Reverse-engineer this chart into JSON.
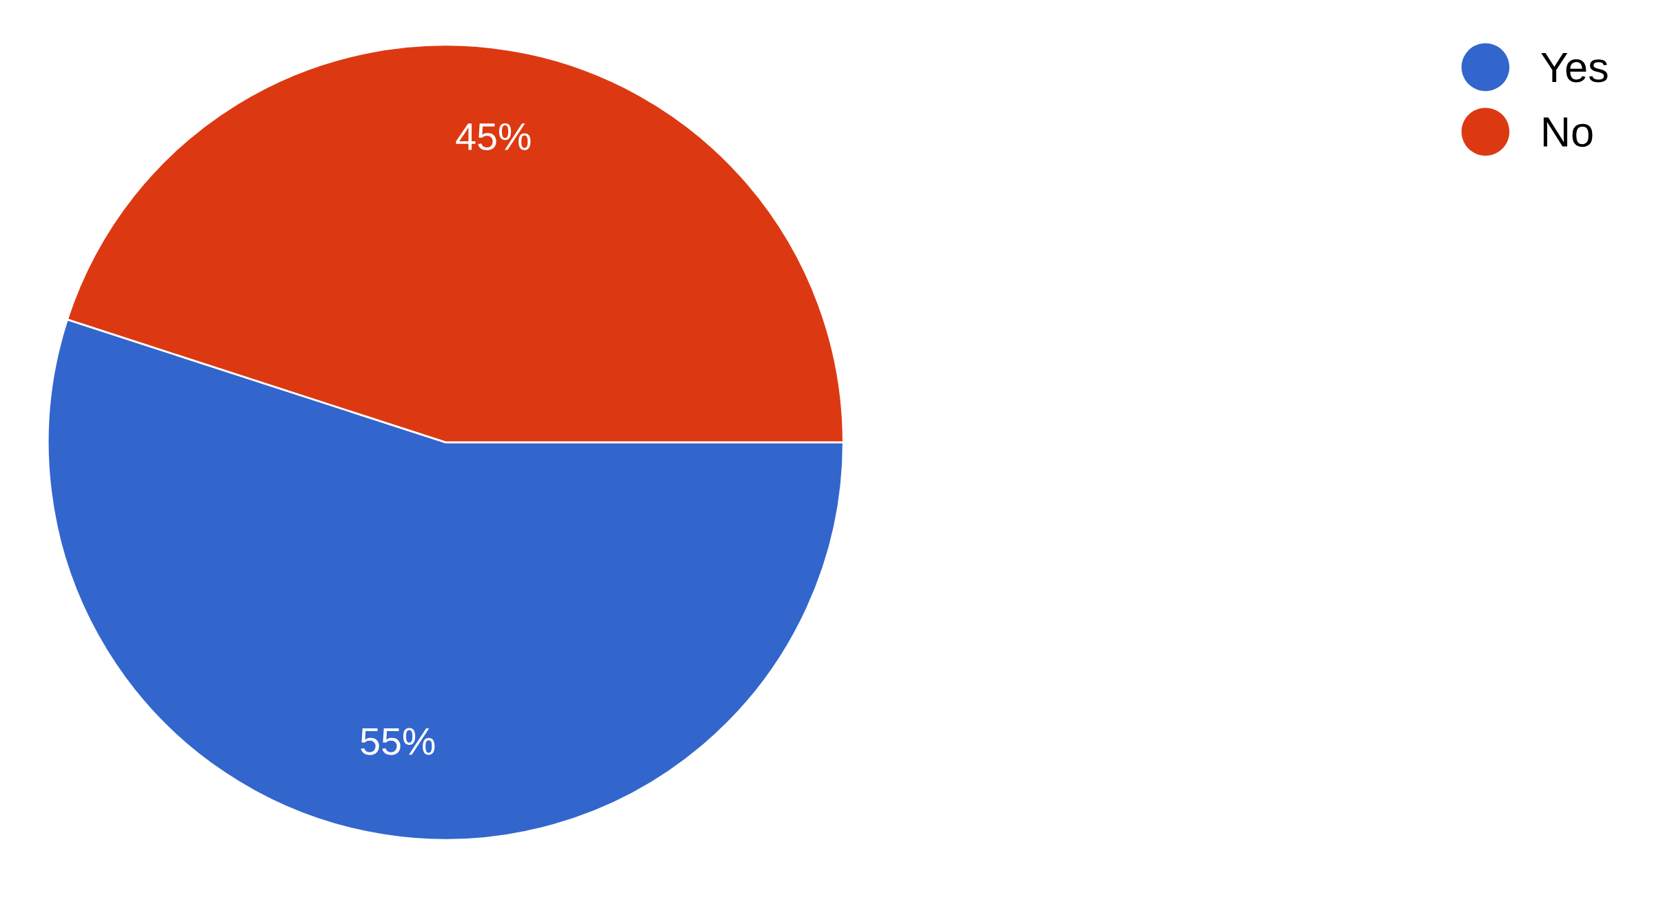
{
  "chart_data": {
    "type": "pie",
    "categories": [
      "Yes",
      "No"
    ],
    "values": [
      55,
      45
    ],
    "colors": [
      "#3366cc",
      "#dc3912"
    ],
    "value_labels": [
      "55%",
      "45%"
    ],
    "legend": "top right"
  }
}
